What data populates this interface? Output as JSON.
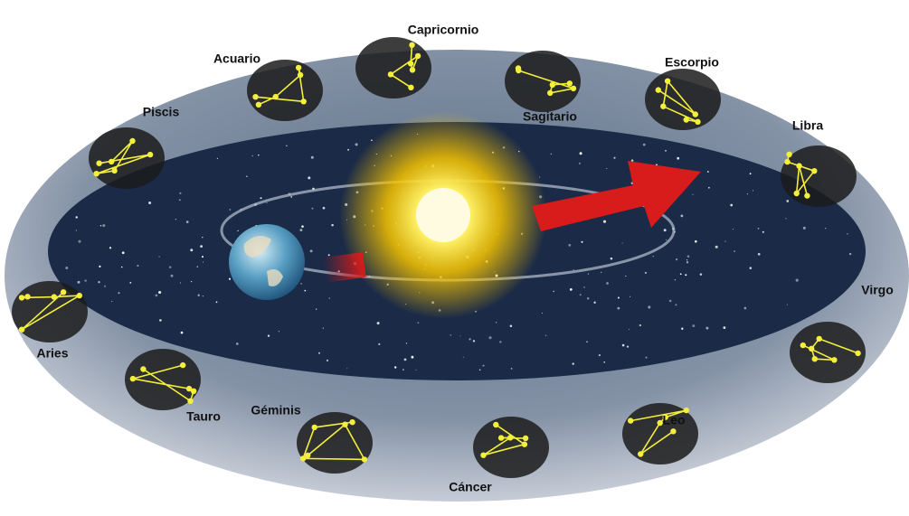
{
  "labels": [
    "Capricornio",
    "Acuario",
    "Sagitario",
    "Escorpio",
    "Piscis",
    "Libra",
    "Virgo",
    "Aries",
    "Tauro",
    "Géminis",
    "Leo",
    "Cáncer"
  ]
}
